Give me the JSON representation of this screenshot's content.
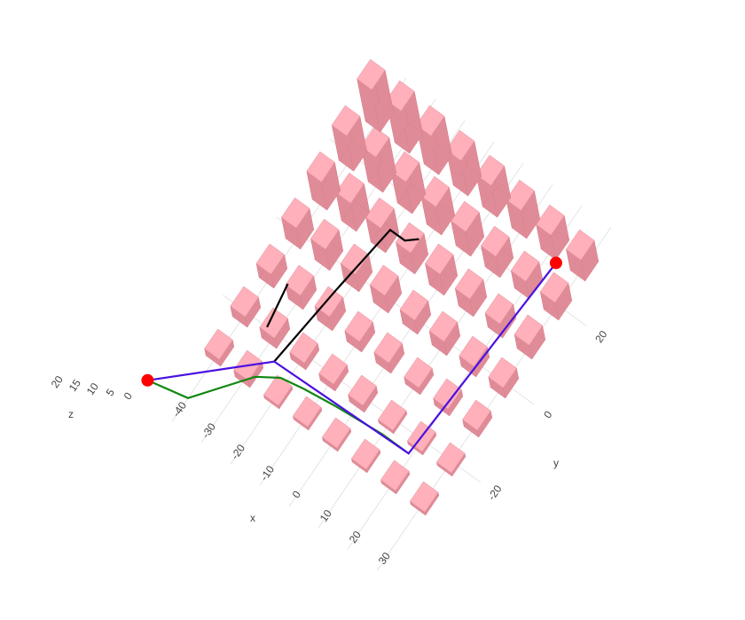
{
  "chart_data": {
    "type": "scatter3d",
    "xaxis_title": "x",
    "yaxis_title": "y",
    "zaxis_title": "z",
    "xticks": [
      -40,
      -30,
      -20,
      -10,
      0,
      10,
      20,
      30
    ],
    "yticks": [
      -20,
      0,
      20
    ],
    "zticks": [
      0,
      5,
      10,
      15,
      20
    ],
    "grid": true,
    "obstacles": {
      "color": "#ffb0bb",
      "x": [
        -40,
        -30,
        -20,
        -10,
        0,
        10,
        20,
        30
      ],
      "y": [
        -30,
        -20,
        -10,
        0,
        10,
        20,
        30
      ],
      "heights": [
        [
          2,
          3,
          4,
          6,
          8,
          10,
          12
        ],
        [
          2,
          3,
          4,
          6,
          8,
          10,
          12
        ],
        [
          1,
          2,
          4,
          5,
          7,
          9,
          11
        ],
        [
          1,
          2,
          3,
          5,
          6,
          8,
          10
        ],
        [
          1,
          2,
          3,
          4,
          6,
          7,
          9
        ],
        [
          1,
          1,
          2,
          4,
          5,
          6,
          8
        ],
        [
          1,
          1,
          2,
          3,
          4,
          5,
          7
        ],
        [
          1,
          1,
          2,
          3,
          4,
          5,
          6
        ]
      ]
    },
    "series": [
      {
        "color": "#000000",
        "x": [
          -26,
          -23,
          -20,
          -15,
          -12,
          null,
          -35,
          -33
        ],
        "y": [
          -25,
          -5,
          12,
          12,
          14,
          null,
          -10,
          -20
        ]
      },
      {
        "color": "#118811",
        "x": [
          -52,
          -40,
          -28,
          -22,
          -15,
          -5,
          10,
          18
        ],
        "y": [
          -44,
          -42,
          -30,
          -27,
          -26,
          -25,
          -24,
          -24
        ]
      },
      {
        "color": "#4a10e0",
        "x": [
          -52,
          -26,
          19,
          23
        ],
        "y": [
          -44,
          -25,
          -24,
          27
        ]
      },
      {
        "color": "#ff0000",
        "x": [
          -52,
          23
        ],
        "y": [
          -44,
          27
        ]
      }
    ]
  }
}
